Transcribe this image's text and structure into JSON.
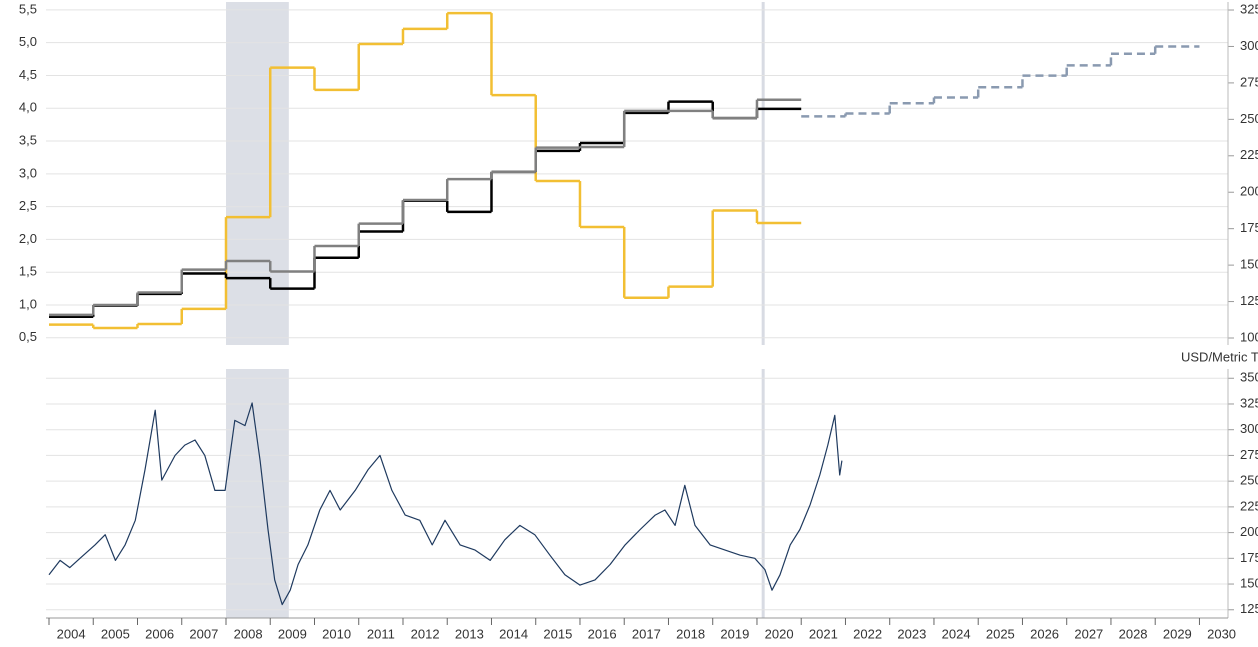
{
  "chart_data": [
    {
      "type": "step",
      "xlim": [
        2004,
        2030.6
      ],
      "ylim": [
        0.39,
        5.62
      ],
      "yticks": [
        {
          "value": 0.5,
          "label": "0,5"
        },
        {
          "value": 1,
          "label": "1,0"
        },
        {
          "value": 1.5,
          "label": "1,5"
        },
        {
          "value": 2,
          "label": "2,0"
        },
        {
          "value": 2.5,
          "label": "2,5"
        },
        {
          "value": 3,
          "label": "3,0"
        },
        {
          "value": 3.5,
          "label": "3,5"
        },
        {
          "value": 4,
          "label": "4,0"
        },
        {
          "value": 4.5,
          "label": "4,5"
        },
        {
          "value": 5,
          "label": "5,0"
        },
        {
          "value": 5.5,
          "label": "5,5"
        }
      ],
      "y2lim": [
        95.2,
        330.5
      ],
      "y2ticks": [
        100,
        125,
        150,
        175,
        200,
        225,
        250,
        275,
        300,
        325
      ],
      "grid": true,
      "highlight": [
        2008,
        2009.42
      ],
      "marker_x": 2020.14,
      "series": [
        {
          "color": "#f2bf33",
          "bins": [
            2004,
            2005,
            2006,
            2007,
            2008,
            2009,
            2010,
            2011,
            2012,
            2013,
            2014,
            2015,
            2016,
            2017,
            2018,
            2019,
            2020,
            2021
          ],
          "values": [
            0.7,
            0.65,
            0.71,
            0.94,
            2.34,
            4.62,
            4.28,
            4.98,
            5.21,
            5.45,
            4.2,
            2.89,
            2.19,
            1.11,
            1.28,
            2.44,
            2.25
          ]
        },
        {
          "color": "#000000",
          "bins": [
            2004,
            2005,
            2006,
            2007,
            2008,
            2009,
            2010,
            2011,
            2012,
            2013,
            2014,
            2015,
            2016,
            2017,
            2018,
            2019,
            2020,
            2021
          ],
          "values": [
            0.82,
            0.99,
            1.17,
            1.48,
            1.41,
            1.25,
            1.72,
            2.12,
            2.59,
            2.42,
            3.03,
            3.35,
            3.47,
            3.93,
            4.1,
            3.85,
            3.99
          ]
        },
        {
          "color": "#808080",
          "bins": [
            2004,
            2005,
            2006,
            2007,
            2008,
            2009,
            2010,
            2011,
            2012,
            2013,
            2014,
            2015,
            2016,
            2017,
            2018,
            2019,
            2020,
            2021
          ],
          "values": [
            0.85,
            1,
            1.19,
            1.54,
            1.67,
            1.51,
            1.9,
            2.24,
            2.6,
            2.92,
            3.03,
            3.4,
            3.41,
            3.96,
            3.96,
            3.85,
            4.13
          ]
        },
        {
          "color": "#8a9ab0",
          "dashed": true,
          "axis": "y2",
          "bins": [
            2021,
            2022,
            2023,
            2024,
            2025,
            2026,
            2027,
            2028,
            2029,
            2030
          ],
          "values": [
            252,
            254,
            261,
            265,
            272,
            280,
            287,
            295,
            300
          ]
        }
      ]
    },
    {
      "type": "line",
      "xlim": [
        2004,
        2030.6
      ],
      "xticks": [
        2004,
        2005,
        2006,
        2007,
        2008,
        2009,
        2010,
        2011,
        2012,
        2013,
        2014,
        2015,
        2016,
        2017,
        2018,
        2019,
        2020,
        2021,
        2022,
        2023,
        2024,
        2025,
        2026,
        2027,
        2028,
        2029,
        2030
      ],
      "ylim": [
        117,
        359
      ],
      "yticks": [
        125,
        150,
        175,
        200,
        225,
        250,
        275,
        300,
        325,
        350
      ],
      "y_label": "USD/Metric T",
      "grid": true,
      "highlight": [
        2008,
        2009.42
      ],
      "marker_x": 2020.14,
      "series": [
        {
          "color": "#1f3a5f",
          "x": [
            2004,
            2004.25,
            2004.47,
            2004.7,
            2005.04,
            2005.27,
            2005.5,
            2005.72,
            2005.95,
            2006.17,
            2006.4,
            2006.55,
            2006.85,
            2007.07,
            2007.3,
            2007.52,
            2007.75,
            2007.98,
            2008.2,
            2008.43,
            2008.59,
            2008.77,
            2008.95,
            2009.1,
            2009.27,
            2009.45,
            2009.63,
            2009.85,
            2010.12,
            2010.35,
            2010.58,
            2010.92,
            2011.21,
            2011.48,
            2011.75,
            2012.05,
            2012.38,
            2012.66,
            2012.95,
            2013.29,
            2013.63,
            2013.97,
            2014.3,
            2014.64,
            2014.98,
            2015.32,
            2015.66,
            2016,
            2016.34,
            2016.68,
            2017.02,
            2017.36,
            2017.7,
            2017.92,
            2018.15,
            2018.37,
            2018.6,
            2018.94,
            2019.28,
            2019.62,
            2019.95,
            2020.18,
            2020.34,
            2020.52,
            2020.75,
            2020.97,
            2021.2,
            2021.42,
            2021.6,
            2021.76,
            2021.87,
            2021.92
          ],
          "values": [
            159,
            173,
            166,
            175,
            188,
            198,
            173,
            188,
            212,
            261,
            319,
            251,
            275,
            285,
            290,
            275,
            241,
            241,
            309,
            304,
            326,
            270,
            203,
            154,
            130,
            144,
            169,
            188,
            222,
            241,
            222,
            241,
            261,
            275,
            241,
            217,
            212,
            188,
            212,
            188,
            183,
            173,
            193,
            207,
            198,
            178,
            159,
            149,
            154,
            169,
            188,
            203,
            217,
            222,
            207,
            246,
            207,
            188,
            183,
            178,
            175,
            164,
            144,
            159,
            188,
            203,
            227,
            256,
            285,
            314,
            256,
            270
          ]
        }
      ]
    }
  ]
}
